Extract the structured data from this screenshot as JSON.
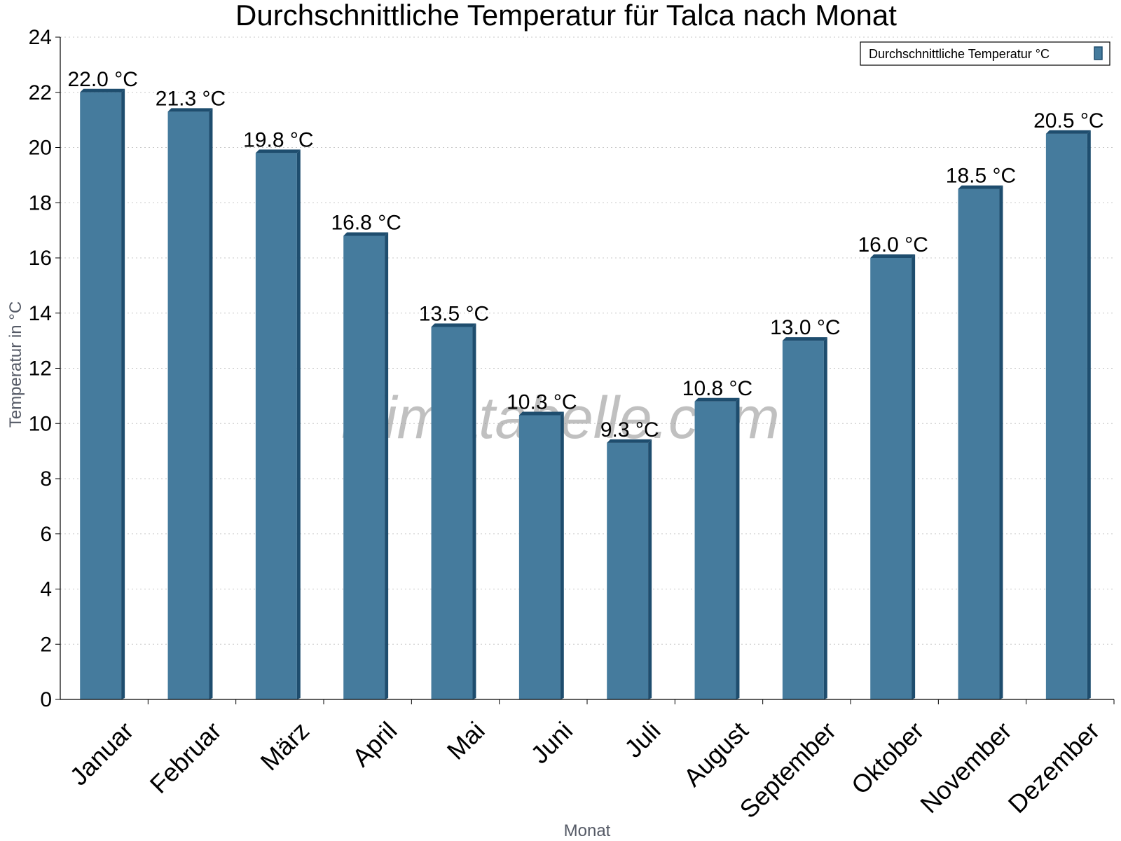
{
  "chart_data": {
    "type": "bar",
    "title": "Durchschnittliche Temperatur für Talca nach Monat",
    "xlabel": "Monat",
    "ylabel": "Temperatur in °C",
    "categories": [
      "Januar",
      "Februar",
      "März",
      "April",
      "Mai",
      "Juni",
      "Juli",
      "August",
      "September",
      "Oktober",
      "November",
      "Dezember"
    ],
    "series": [
      {
        "name": "Durchschnittliche Temperatur °C",
        "values": [
          22.0,
          21.3,
          19.8,
          16.8,
          13.5,
          10.3,
          9.3,
          10.8,
          13.0,
          16.0,
          18.5,
          20.5
        ],
        "color": "#457b9d",
        "edge_color": "#1e4d6e"
      }
    ],
    "value_suffix": " °C",
    "ylim": [
      0,
      24
    ],
    "yticks": [
      0,
      2,
      4,
      6,
      8,
      10,
      12,
      14,
      16,
      18,
      20,
      22,
      24
    ],
    "grid": true,
    "legend_position": "top-right",
    "watermark": "klimatabelle.com"
  }
}
